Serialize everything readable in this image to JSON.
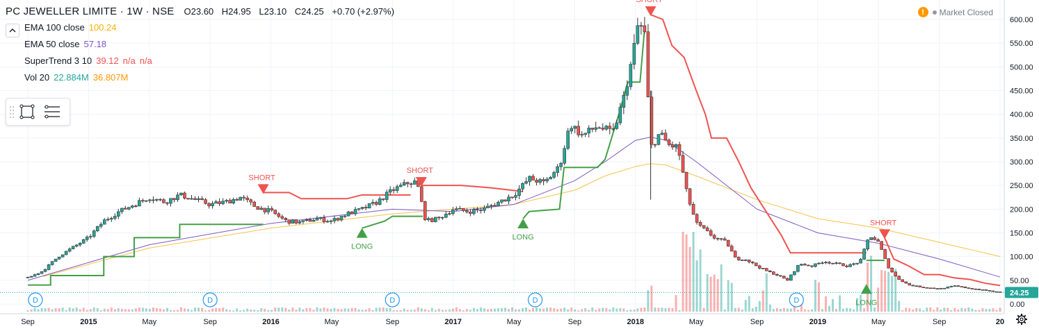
{
  "header": {
    "symbol": "PC JEWELLER LIMITE · 1W · NSE",
    "open": "O23.60",
    "high": "H24.95",
    "low": "L23.10",
    "close": "C24.25",
    "change": "+0.70 (+2.97%)"
  },
  "indicators": [
    {
      "name": "EMA 100 close",
      "values": [
        "100.24"
      ],
      "colors": [
        "#f4b400"
      ]
    },
    {
      "name": "EMA 50 close",
      "values": [
        "57.18"
      ],
      "colors": [
        "#7e57c2"
      ]
    },
    {
      "name": "SuperTrend 3 10",
      "values": [
        "39.12",
        "n/a",
        "n/a"
      ],
      "colors": [
        "#ef5350",
        "#ef5350",
        "#ef5350"
      ]
    },
    {
      "name": "Vol 20",
      "values": [
        "22.884M",
        "36.807M"
      ],
      "colors": [
        "#26a69a",
        "#ff9800"
      ]
    }
  ],
  "status": {
    "text": "Market Closed",
    "warn": "!"
  },
  "colors": {
    "up": "#26a69a",
    "down": "#ef5350",
    "ema100": "#f7c246",
    "ema50": "#7e57c2",
    "st_long": "#43a047",
    "st_short": "#ef5350"
  },
  "chart_data": {
    "type": "candlestick",
    "title": "PC JEWELLER LIMITE · 1W · NSE",
    "x_axis_labels": [
      {
        "label": "Sep",
        "t": 0.0
      },
      {
        "label": "2015",
        "t": 4.0
      },
      {
        "label": "May",
        "t": 8.0
      },
      {
        "label": "Sep",
        "t": 12.0
      },
      {
        "label": "2016",
        "t": 16.0
      },
      {
        "label": "May",
        "t": 20.0
      },
      {
        "label": "Sep",
        "t": 24.0
      },
      {
        "label": "2017",
        "t": 28.0
      },
      {
        "label": "May",
        "t": 32.0
      },
      {
        "label": "Sep",
        "t": 36.0
      },
      {
        "label": "2018",
        "t": 40.0
      },
      {
        "label": "May",
        "t": 44.0
      },
      {
        "label": "Sep",
        "t": 48.0
      },
      {
        "label": "2019",
        "t": 52.0
      },
      {
        "label": "May",
        "t": 56.0
      },
      {
        "label": "Sep",
        "t": 60.0
      },
      {
        "label": "20",
        "t": 64.0
      }
    ],
    "y_axis": {
      "ticks": [
        "600.00",
        "550.00",
        "500.00",
        "450.00",
        "400.00",
        "350.00",
        "300.00",
        "250.00",
        "200.00",
        "150.00",
        "100.00",
        "50.00",
        "0.00"
      ],
      "range": [
        0,
        600
      ]
    },
    "last_price": "24.25",
    "price_path": [
      [
        0.0,
        55
      ],
      [
        1.0,
        70
      ],
      [
        2.0,
        100
      ],
      [
        3.0,
        120
      ],
      [
        4.0,
        140
      ],
      [
        5.0,
        175
      ],
      [
        6.0,
        195
      ],
      [
        7.0,
        210
      ],
      [
        8.0,
        225
      ],
      [
        9.0,
        215
      ],
      [
        10.0,
        230
      ],
      [
        11.0,
        220
      ],
      [
        12.0,
        210
      ],
      [
        13.0,
        215
      ],
      [
        14.0,
        225
      ],
      [
        15.0,
        205
      ],
      [
        16.0,
        195
      ],
      [
        16.5,
        185
      ],
      [
        17.0,
        175
      ],
      [
        18.0,
        172
      ],
      [
        19.0,
        180
      ],
      [
        20.0,
        175
      ],
      [
        21.0,
        190
      ],
      [
        22.0,
        200
      ],
      [
        23.0,
        215
      ],
      [
        24.0,
        240
      ],
      [
        25.0,
        255
      ],
      [
        25.6,
        258
      ],
      [
        26.2,
        175
      ],
      [
        27.0,
        180
      ],
      [
        28.0,
        200
      ],
      [
        29.0,
        195
      ],
      [
        30.0,
        200
      ],
      [
        31.0,
        215
      ],
      [
        32.0,
        230
      ],
      [
        33.0,
        265
      ],
      [
        34.0,
        255
      ],
      [
        35.0,
        290
      ],
      [
        35.7,
        380
      ],
      [
        36.5,
        355
      ],
      [
        37.5,
        375
      ],
      [
        38.5,
        360
      ],
      [
        39.2,
        430
      ],
      [
        39.8,
        520
      ],
      [
        40.2,
        595
      ],
      [
        40.6,
        570
      ],
      [
        41.0,
        330
      ],
      [
        41.6,
        360
      ],
      [
        42.2,
        335
      ],
      [
        42.8,
        330
      ],
      [
        43.4,
        230
      ],
      [
        44.0,
        170
      ],
      [
        44.6,
        155
      ],
      [
        45.2,
        140
      ],
      [
        46.0,
        130
      ],
      [
        46.6,
        95
      ],
      [
        47.2,
        95
      ],
      [
        48.0,
        80
      ],
      [
        48.6,
        70
      ],
      [
        49.4,
        60
      ],
      [
        50.0,
        50
      ],
      [
        50.8,
        85
      ],
      [
        51.6,
        80
      ],
      [
        52.4,
        90
      ],
      [
        53.2,
        85
      ],
      [
        54.0,
        80
      ],
      [
        54.8,
        90
      ],
      [
        55.4,
        145
      ],
      [
        56.0,
        130
      ],
      [
        56.6,
        80
      ],
      [
        57.2,
        55
      ],
      [
        58.0,
        40
      ],
      [
        59.0,
        35
      ],
      [
        60.0,
        32
      ],
      [
        61.0,
        38
      ],
      [
        62.0,
        33
      ],
      [
        63.0,
        29
      ],
      [
        64.0,
        24.25
      ]
    ],
    "ema100_path": [
      [
        1.0,
        58
      ],
      [
        8.0,
        118
      ],
      [
        16.0,
        160
      ],
      [
        24.0,
        190
      ],
      [
        32.0,
        210
      ],
      [
        36.0,
        240
      ],
      [
        38.0,
        270
      ],
      [
        40.0,
        290
      ],
      [
        41.0,
        296
      ],
      [
        42.0,
        293
      ],
      [
        44.0,
        270
      ],
      [
        48.0,
        220
      ],
      [
        52.0,
        180
      ],
      [
        56.0,
        160
      ],
      [
        60.0,
        130
      ],
      [
        64.0,
        100
      ]
    ],
    "ema50_path": [
      [
        0.0,
        50
      ],
      [
        8.0,
        125
      ],
      [
        16.0,
        170
      ],
      [
        24.0,
        200
      ],
      [
        28.0,
        195
      ],
      [
        32.0,
        210
      ],
      [
        36.0,
        260
      ],
      [
        38.0,
        300
      ],
      [
        40.0,
        345
      ],
      [
        41.0,
        352
      ],
      [
        42.0,
        345
      ],
      [
        44.0,
        300
      ],
      [
        48.0,
        200
      ],
      [
        52.0,
        150
      ],
      [
        56.0,
        128
      ],
      [
        60.0,
        95
      ],
      [
        64.0,
        57
      ]
    ],
    "supertrend_long": [
      [
        [
          0.0,
          40
        ],
        [
          1.5,
          40
        ],
        [
          1.5,
          60
        ],
        [
          5.0,
          60
        ],
        [
          5.0,
          100
        ],
        [
          7.0,
          100
        ],
        [
          7.0,
          140
        ],
        [
          10.0,
          140
        ],
        [
          10.0,
          168
        ],
        [
          15.5,
          168
        ]
      ],
      [
        [
          22.0,
          160
        ],
        [
          23.5,
          175
        ],
        [
          24.0,
          185
        ],
        [
          26.0,
          185
        ]
      ],
      [
        [
          32.6,
          180
        ],
        [
          33.0,
          195
        ],
        [
          35.0,
          200
        ],
        [
          35.3,
          288
        ],
        [
          37.5,
          288
        ],
        [
          38.0,
          305
        ],
        [
          39.0,
          410
        ],
        [
          39.5,
          468
        ],
        [
          40.3,
          468
        ],
        [
          40.6,
          580
        ]
      ],
      [
        [
          55.2,
          92
        ],
        [
          56.4,
          92
        ]
      ]
    ],
    "supertrend_short": [
      [
        [
          15.5,
          235
        ],
        [
          17.2,
          235
        ],
        [
          18.0,
          222
        ],
        [
          21.0,
          222
        ],
        [
          22.0,
          230
        ],
        [
          25.2,
          230
        ]
      ],
      [
        [
          25.9,
          250
        ],
        [
          28.5,
          250
        ],
        [
          30.5,
          245
        ],
        [
          32.6,
          237
        ]
      ],
      [
        [
          41.0,
          610
        ],
        [
          41.8,
          600
        ],
        [
          42.4,
          545
        ],
        [
          43.2,
          520
        ],
        [
          44.0,
          450
        ],
        [
          44.6,
          400
        ],
        [
          45.0,
          350
        ],
        [
          46.0,
          350
        ],
        [
          46.8,
          300
        ],
        [
          47.6,
          245
        ],
        [
          48.6,
          195
        ],
        [
          49.6,
          145
        ],
        [
          50.2,
          108
        ],
        [
          54.6,
          108
        ],
        [
          55.2,
          108
        ]
      ],
      [
        [
          56.4,
          140
        ],
        [
          57.0,
          95
        ],
        [
          58.0,
          80
        ],
        [
          59.0,
          62
        ],
        [
          60.0,
          62
        ],
        [
          61.0,
          55
        ],
        [
          62.0,
          52
        ],
        [
          63.0,
          44
        ],
        [
          64.0,
          39
        ]
      ]
    ],
    "signals": [
      {
        "label": "SHORT",
        "t": 15.5,
        "price": 235,
        "dir": "short"
      },
      {
        "label": "LONG",
        "t": 22.0,
        "price": 160,
        "dir": "long"
      },
      {
        "label": "SHORT",
        "t": 25.9,
        "price": 250,
        "dir": "short"
      },
      {
        "label": "LONG",
        "t": 32.6,
        "price": 180,
        "dir": "long"
      },
      {
        "label": "SHORT",
        "t": 41.0,
        "price": 610,
        "dir": "short"
      },
      {
        "label": "LONG",
        "t": 55.2,
        "price": 42,
        "dir": "long"
      },
      {
        "label": "SHORT",
        "t": 56.4,
        "price": 140,
        "dir": "short"
      }
    ],
    "dividend_markers": [
      {
        "label": "D",
        "t": 0.5
      },
      {
        "label": "D",
        "t": 12.0
      },
      {
        "label": "D",
        "t": 24.0
      },
      {
        "label": "D",
        "t": 33.4
      },
      {
        "label": "D",
        "t": 50.6
      }
    ],
    "volume_bursts": [
      [
        41.0,
        45
      ],
      [
        43.2,
        130
      ],
      [
        43.6,
        150
      ],
      [
        44.2,
        90
      ],
      [
        44.8,
        70
      ],
      [
        45.4,
        80
      ],
      [
        46.2,
        75
      ],
      [
        48.6,
        55
      ],
      [
        52.0,
        65
      ],
      [
        55.4,
        95
      ],
      [
        56.2,
        55
      ],
      [
        56.6,
        85
      ],
      [
        57.0,
        70
      ]
    ]
  }
}
